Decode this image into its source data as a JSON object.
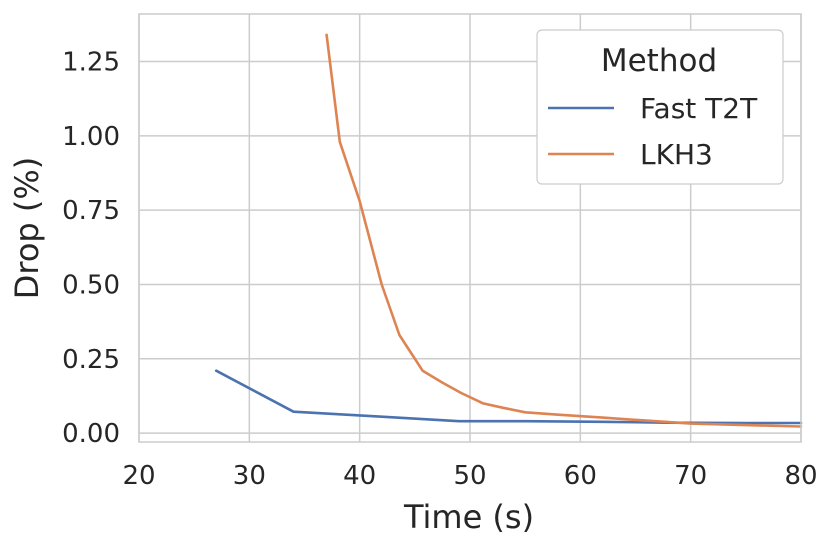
{
  "chart_data": {
    "type": "line",
    "title": "",
    "xlabel": "Time (s)",
    "ylabel": "Drop (%)",
    "xlim": [
      20,
      80
    ],
    "ylim": [
      -0.03,
      1.41
    ],
    "xticks": [
      20,
      30,
      40,
      50,
      60,
      70,
      80
    ],
    "xtick_labels": [
      "20",
      "30",
      "40",
      "50",
      "60",
      "70",
      "80"
    ],
    "yticks": [
      0.0,
      0.25,
      0.5,
      0.75,
      1.0,
      1.25
    ],
    "ytick_labels": [
      "0.00",
      "0.25",
      "0.50",
      "0.75",
      "1.00",
      "1.25"
    ],
    "grid": true,
    "legend": {
      "title": "Method",
      "position": "top-right"
    },
    "series": [
      {
        "name": "Fast T2T",
        "color": "#4C72B0",
        "x": [
          27,
          34,
          42,
          49,
          55,
          62,
          68,
          75,
          80
        ],
        "y": [
          0.21,
          0.072,
          0.055,
          0.04,
          0.04,
          0.038,
          0.035,
          0.034,
          0.034
        ]
      },
      {
        "name": "LKH3",
        "color": "#DD8452",
        "x": [
          37,
          38.2,
          40,
          42,
          43.6,
          45.7,
          47.5,
          49.2,
          51.2,
          53,
          55,
          58,
          62,
          66,
          70,
          75,
          80
        ],
        "y": [
          1.34,
          0.98,
          0.78,
          0.5,
          0.33,
          0.21,
          0.17,
          0.135,
          0.1,
          0.085,
          0.07,
          0.062,
          0.052,
          0.042,
          0.032,
          0.027,
          0.022
        ]
      }
    ]
  }
}
